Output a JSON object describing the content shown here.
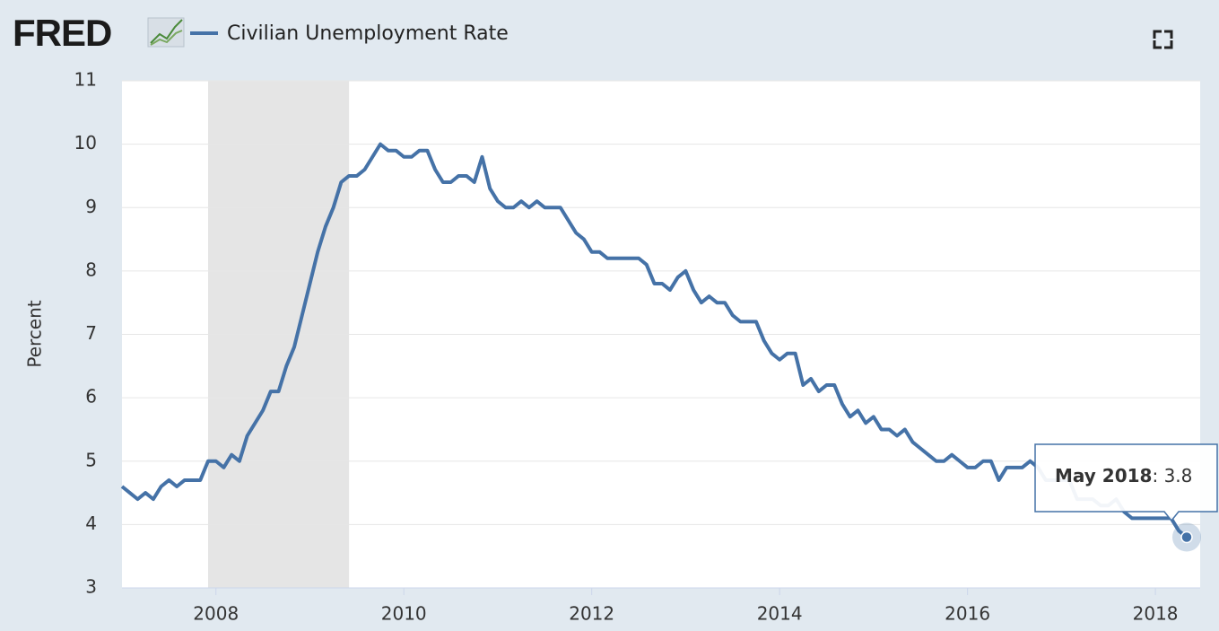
{
  "header": {
    "logo": "FRED"
  },
  "chart_data": {
    "type": "line",
    "ylabel": "Percent",
    "x": [
      "2007-01",
      "2007-02",
      "2007-03",
      "2007-04",
      "2007-05",
      "2007-06",
      "2007-07",
      "2007-08",
      "2007-09",
      "2007-10",
      "2007-11",
      "2007-12",
      "2008-01",
      "2008-02",
      "2008-03",
      "2008-04",
      "2008-05",
      "2008-06",
      "2008-07",
      "2008-08",
      "2008-09",
      "2008-10",
      "2008-11",
      "2008-12",
      "2009-01",
      "2009-02",
      "2009-03",
      "2009-04",
      "2009-05",
      "2009-06",
      "2009-07",
      "2009-08",
      "2009-09",
      "2009-10",
      "2009-11",
      "2009-12",
      "2010-01",
      "2010-02",
      "2010-03",
      "2010-04",
      "2010-05",
      "2010-06",
      "2010-07",
      "2010-08",
      "2010-09",
      "2010-10",
      "2010-11",
      "2010-12",
      "2011-01",
      "2011-02",
      "2011-03",
      "2011-04",
      "2011-05",
      "2011-06",
      "2011-07",
      "2011-08",
      "2011-09",
      "2011-10",
      "2011-11",
      "2011-12",
      "2012-01",
      "2012-02",
      "2012-03",
      "2012-04",
      "2012-05",
      "2012-06",
      "2012-07",
      "2012-08",
      "2012-09",
      "2012-10",
      "2012-11",
      "2012-12",
      "2013-01",
      "2013-02",
      "2013-03",
      "2013-04",
      "2013-05",
      "2013-06",
      "2013-07",
      "2013-08",
      "2013-09",
      "2013-10",
      "2013-11",
      "2013-12",
      "2014-01",
      "2014-02",
      "2014-03",
      "2014-04",
      "2014-05",
      "2014-06",
      "2014-07",
      "2014-08",
      "2014-09",
      "2014-10",
      "2014-11",
      "2014-12",
      "2015-01",
      "2015-02",
      "2015-03",
      "2015-04",
      "2015-05",
      "2015-06",
      "2015-07",
      "2015-08",
      "2015-09",
      "2015-10",
      "2015-11",
      "2015-12",
      "2016-01",
      "2016-02",
      "2016-03",
      "2016-04",
      "2016-05",
      "2016-06",
      "2016-07",
      "2016-08",
      "2016-09",
      "2016-10",
      "2016-11",
      "2016-12",
      "2017-01",
      "2017-02",
      "2017-03",
      "2017-04",
      "2017-05",
      "2017-06",
      "2017-07",
      "2017-08",
      "2017-09",
      "2017-10",
      "2017-11",
      "2017-12",
      "2018-01",
      "2018-02",
      "2018-03",
      "2018-04",
      "2018-05"
    ],
    "series": [
      {
        "name": "Civilian Unemployment Rate",
        "color": "#4572a7",
        "values": [
          4.6,
          4.5,
          4.4,
          4.5,
          4.4,
          4.6,
          4.7,
          4.6,
          4.7,
          4.7,
          4.7,
          5.0,
          5.0,
          4.9,
          5.1,
          5.0,
          5.4,
          5.6,
          5.8,
          6.1,
          6.1,
          6.5,
          6.8,
          7.3,
          7.8,
          8.3,
          8.7,
          9.0,
          9.4,
          9.5,
          9.5,
          9.6,
          9.8,
          10.0,
          9.9,
          9.9,
          9.8,
          9.8,
          9.9,
          9.9,
          9.6,
          9.4,
          9.4,
          9.5,
          9.5,
          9.4,
          9.8,
          9.3,
          9.1,
          9.0,
          9.0,
          9.1,
          9.0,
          9.1,
          9.0,
          9.0,
          9.0,
          8.8,
          8.6,
          8.5,
          8.3,
          8.3,
          8.2,
          8.2,
          8.2,
          8.2,
          8.2,
          8.1,
          7.8,
          7.8,
          7.7,
          7.9,
          8.0,
          7.7,
          7.5,
          7.6,
          7.5,
          7.5,
          7.3,
          7.2,
          7.2,
          7.2,
          6.9,
          6.7,
          6.6,
          6.7,
          6.7,
          6.2,
          6.3,
          6.1,
          6.2,
          6.2,
          5.9,
          5.7,
          5.8,
          5.6,
          5.7,
          5.5,
          5.5,
          5.4,
          5.5,
          5.3,
          5.2,
          5.1,
          5.0,
          5.0,
          5.1,
          5.0,
          4.9,
          4.9,
          5.0,
          5.0,
          4.7,
          4.9,
          4.9,
          4.9,
          5.0,
          4.9,
          4.7,
          4.7,
          4.7,
          4.7,
          4.4,
          4.4,
          4.4,
          4.3,
          4.3,
          4.4,
          4.2,
          4.1,
          4.1,
          4.1,
          4.1,
          4.1,
          4.1,
          3.9,
          3.8
        ]
      }
    ],
    "xlim": [
      "2007-01",
      "2018-05"
    ],
    "xticks": [
      2008,
      2010,
      2012,
      2014,
      2016,
      2018
    ],
    "ylim": [
      3,
      11
    ],
    "yticks": [
      3,
      4,
      5,
      6,
      7,
      8,
      9,
      10,
      11
    ],
    "grid": true,
    "shading": [
      {
        "start": "2007-12",
        "end": "2009-06",
        "color": "#e5e5e5"
      }
    ],
    "tooltip": {
      "label": "May 2018",
      "index": 136
    }
  }
}
